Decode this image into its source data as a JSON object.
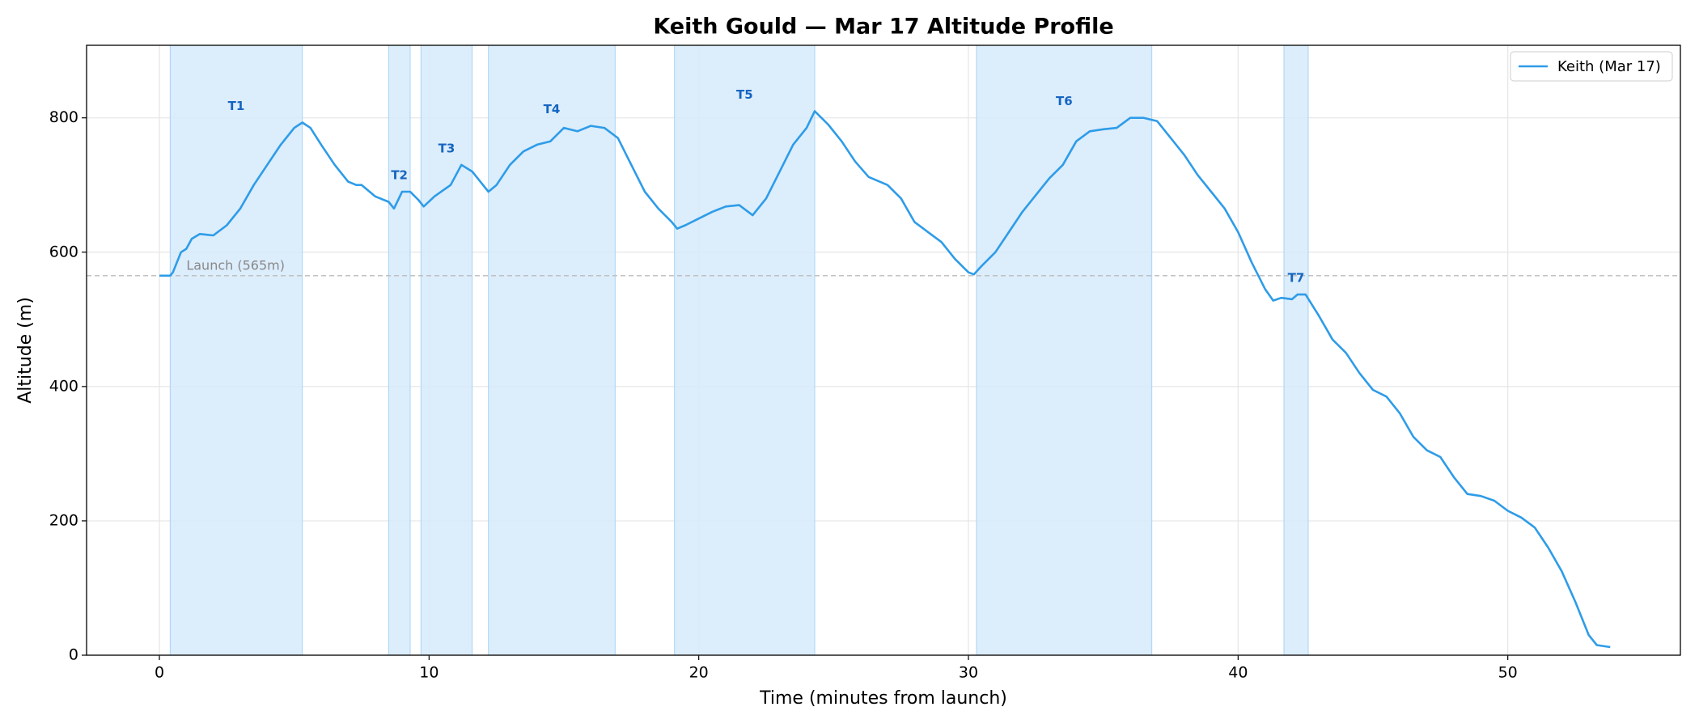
{
  "chart_data": {
    "type": "line",
    "title": "Keith Gould — Mar 17 Altitude Profile",
    "xlabel": "Time (minutes from launch)",
    "ylabel": "Altitude (m)",
    "xlim": [
      -2.7,
      56.4
    ],
    "ylim": [
      0,
      908
    ],
    "xticks": [
      0,
      10,
      20,
      30,
      40,
      50
    ],
    "yticks": [
      0,
      200,
      400,
      600,
      800
    ],
    "grid": true,
    "legend": "upper right",
    "launch_altitude": 565,
    "launch_label": "Launch (565m)",
    "thermals": [
      {
        "label": "T1",
        "start": 0.4,
        "end": 5.3
      },
      {
        "label": "T2",
        "start": 8.5,
        "end": 9.3
      },
      {
        "label": "T3",
        "start": 9.7,
        "end": 11.6
      },
      {
        "label": "T4",
        "start": 12.2,
        "end": 16.9
      },
      {
        "label": "T5",
        "start": 19.1,
        "end": 24.3
      },
      {
        "label": "T6",
        "start": 30.3,
        "end": 36.8
      },
      {
        "label": "T7",
        "start": 41.7,
        "end": 42.6
      }
    ],
    "x": [
      0,
      0.4,
      0.5,
      0.8,
      1.0,
      1.2,
      1.5,
      2.0,
      2.5,
      3.0,
      3.5,
      4.0,
      4.5,
      5.0,
      5.3,
      5.6,
      6.0,
      6.5,
      7.0,
      7.3,
      7.5,
      8.0,
      8.5,
      8.7,
      9.0,
      9.3,
      9.6,
      9.8,
      10.2,
      10.8,
      11.2,
      11.6,
      12.0,
      12.2,
      12.5,
      13.0,
      13.5,
      14.0,
      14.5,
      15.0,
      15.5,
      16.0,
      16.5,
      17.0,
      17.5,
      18.0,
      18.5,
      19.0,
      19.2,
      19.5,
      20.0,
      20.5,
      21.0,
      21.5,
      22.0,
      22.5,
      23.0,
      23.5,
      24.0,
      24.3,
      24.8,
      25.3,
      25.8,
      26.3,
      27.0,
      27.5,
      28.0,
      28.5,
      29.0,
      29.5,
      30.0,
      30.2,
      30.5,
      31.0,
      31.5,
      32.0,
      32.5,
      33.0,
      33.5,
      34.0,
      34.5,
      35.0,
      35.5,
      36.0,
      36.5,
      37.0,
      37.5,
      38.0,
      38.5,
      39.0,
      39.5,
      40.0,
      40.5,
      41.0,
      41.3,
      41.6,
      42.0,
      42.2,
      42.5,
      43.0,
      43.5,
      44.0,
      44.5,
      45.0,
      45.5,
      46.0,
      46.5,
      47.0,
      47.5,
      48.0,
      48.5,
      49.0,
      49.5,
      50.0,
      50.5,
      51.0,
      51.5,
      52.0,
      52.5,
      53.0,
      53.3,
      53.8
    ],
    "series": [
      {
        "name": "Keith (Mar 17)",
        "color": "#2e9ce8",
        "values": [
          565,
          565,
          570,
          600,
          605,
          620,
          627,
          625,
          640,
          665,
          700,
          730,
          760,
          785,
          793,
          785,
          760,
          730,
          705,
          700,
          700,
          683,
          675,
          665,
          690,
          690,
          678,
          668,
          683,
          700,
          730,
          720,
          700,
          690,
          700,
          730,
          750,
          760,
          765,
          785,
          780,
          788,
          785,
          770,
          730,
          690,
          665,
          645,
          635,
          640,
          650,
          660,
          668,
          670,
          655,
          680,
          720,
          760,
          785,
          810,
          790,
          765,
          735,
          712,
          700,
          680,
          645,
          630,
          615,
          590,
          570,
          567,
          580,
          600,
          630,
          660,
          685,
          710,
          730,
          765,
          780,
          783,
          785,
          800,
          800,
          795,
          770,
          745,
          715,
          690,
          665,
          630,
          585,
          545,
          528,
          532,
          530,
          537,
          537,
          505,
          470,
          450,
          420,
          395,
          385,
          360,
          325,
          305,
          295,
          265,
          240,
          237,
          230,
          215,
          205,
          190,
          160,
          125,
          80,
          30,
          15,
          12
        ]
      }
    ]
  }
}
